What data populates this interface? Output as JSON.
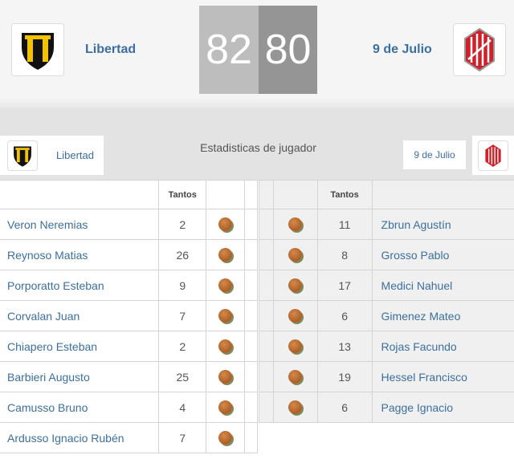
{
  "match": {
    "home": {
      "name": "Libertad",
      "score": "82",
      "color": "#f3c300"
    },
    "away": {
      "name": "9 de Julio",
      "score": "80",
      "color": "#d0202a"
    }
  },
  "section_title": "Estadisticas de jugador",
  "column_header": "Tantos",
  "icon": "basketball-icon",
  "home_players": [
    {
      "name": "Veron Neremias",
      "points": "2"
    },
    {
      "name": "Reynoso Matias",
      "points": "26"
    },
    {
      "name": "Porporatto Esteban",
      "points": "9"
    },
    {
      "name": "Corvalan Juan",
      "points": "7"
    },
    {
      "name": "Chiapero Esteban",
      "points": "2"
    },
    {
      "name": "Barbieri Augusto",
      "points": "25"
    },
    {
      "name": "Camusso Bruno",
      "points": "4"
    },
    {
      "name": "Ardusso Ignacio Rubén",
      "points": "7"
    }
  ],
  "away_players": [
    {
      "name": "Zbrun Agustín",
      "points": "11"
    },
    {
      "name": "Grosso Pablo",
      "points": "8"
    },
    {
      "name": "Medici Nahuel",
      "points": "17"
    },
    {
      "name": "Gimenez Mateo",
      "points": "6"
    },
    {
      "name": "Rojas Facundo",
      "points": "13"
    },
    {
      "name": "Hessel Francisco",
      "points": "19"
    },
    {
      "name": "Pagge Ignacio",
      "points": "6"
    }
  ]
}
